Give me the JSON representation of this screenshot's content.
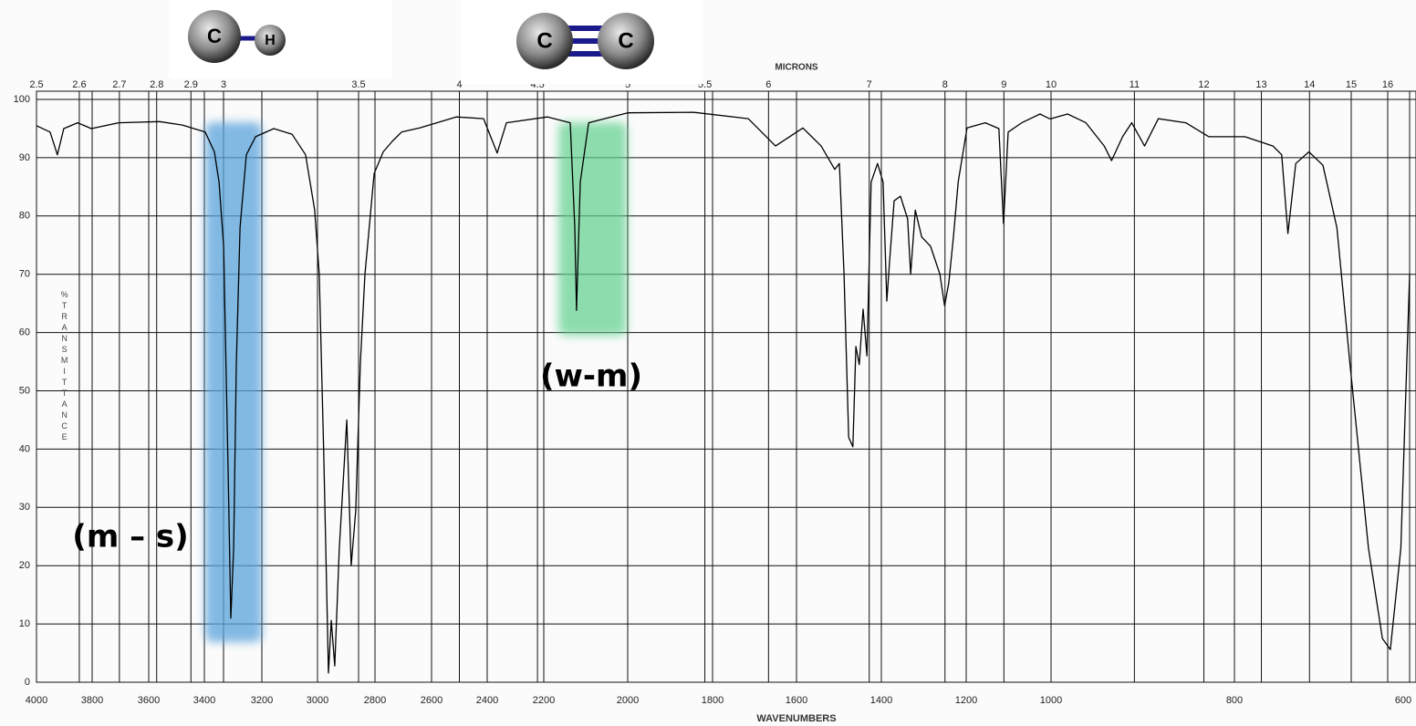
{
  "chart_data": {
    "type": "line",
    "x_label": "WAVENUMBERS",
    "x2_label": "MICRONS",
    "y_label": "%TRANSMITTANCE",
    "xlim": [
      4000,
      600
    ],
    "ylim": [
      0,
      100
    ],
    "xticks": [
      4000,
      3800,
      3600,
      3400,
      3200,
      3000,
      2800,
      2600,
      2400,
      2200,
      2000,
      1800,
      1600,
      1400,
      1200,
      1000,
      800,
      600
    ],
    "x2ticks": [
      2.5,
      2.6,
      2.7,
      2.8,
      2.9,
      3,
      3.5,
      4,
      4.5,
      5,
      5.5,
      6,
      7,
      8,
      9,
      10,
      11,
      12,
      13,
      14,
      15,
      16
    ],
    "yticks": [
      0,
      10,
      20,
      30,
      40,
      50,
      60,
      70,
      80,
      90,
      100
    ],
    "grid": true,
    "color": "#000000",
    "x": [
      4000,
      3951,
      3925,
      3902,
      3852,
      3803,
      3706,
      3561,
      3479,
      3397,
      3365,
      3349,
      3333,
      3317,
      3308,
      3298,
      3289,
      3276,
      3254,
      3222,
      3157,
      3091,
      3043,
      3010,
      2994,
      2978,
      2962,
      2952,
      2940,
      2924,
      2898,
      2883,
      2867,
      2851,
      2835,
      2803,
      2771,
      2739,
      2706,
      2642,
      2511,
      2413,
      2365,
      2332,
      2191,
      2137,
      2126,
      2122,
      2113,
      2093,
      2000,
      1845,
      1715,
      1650,
      1585,
      1542,
      1510,
      1499,
      1488,
      1477,
      1467,
      1460,
      1452,
      1443,
      1434,
      1424,
      1409,
      1396,
      1387,
      1381,
      1370,
      1355,
      1338,
      1331,
      1320,
      1305,
      1284,
      1262,
      1251,
      1241,
      1230,
      1219,
      1198,
      1155,
      1123,
      1112,
      1101,
      1069,
      1026,
      1004,
      1000,
      982,
      962,
      942,
      934,
      922,
      912,
      898,
      883,
      853,
      828,
      808,
      788,
      756,
      746,
      739,
      730,
      715,
      699,
      683,
      668,
      647,
      631,
      622,
      610,
      600
    ],
    "values": [
      95.5,
      94.4,
      90.5,
      95,
      96,
      95,
      96,
      96.2,
      95.6,
      94.4,
      91,
      85.8,
      74.8,
      35.7,
      11,
      23,
      54.5,
      78,
      90.5,
      93.6,
      95,
      94,
      90.5,
      81,
      70,
      38.8,
      1.6,
      10.6,
      2.8,
      23,
      45,
      20,
      29.4,
      54.5,
      70,
      87.3,
      91,
      92.8,
      94.4,
      95.1,
      97,
      96.7,
      90.8,
      96,
      97,
      96,
      78,
      63.8,
      85.8,
      96,
      97.7,
      97.8,
      96.7,
      92,
      95.1,
      92,
      88,
      89,
      70,
      42,
      40.4,
      57.6,
      54.5,
      64,
      56,
      85.8,
      89,
      85.8,
      65.4,
      71.7,
      82.6,
      83.4,
      79.5,
      70,
      81,
      76.4,
      74.8,
      70,
      64.6,
      68.5,
      76.4,
      85.8,
      95.1,
      96,
      95,
      78.7,
      94.4,
      96,
      97.5,
      96.7,
      96.7,
      97.5,
      96,
      92,
      89.5,
      93.6,
      96,
      92,
      96.7,
      96,
      93.6,
      93.6,
      93.6,
      92,
      90.5,
      77,
      89,
      91,
      88.7,
      78,
      54.5,
      23,
      7.5,
      5.6,
      23,
      70
    ],
    "annotations": [
      "(m – s)",
      "(w-m)"
    ],
    "molecule_labels": [
      [
        "C",
        "H"
      ],
      [
        "C",
        "C"
      ]
    ]
  }
}
